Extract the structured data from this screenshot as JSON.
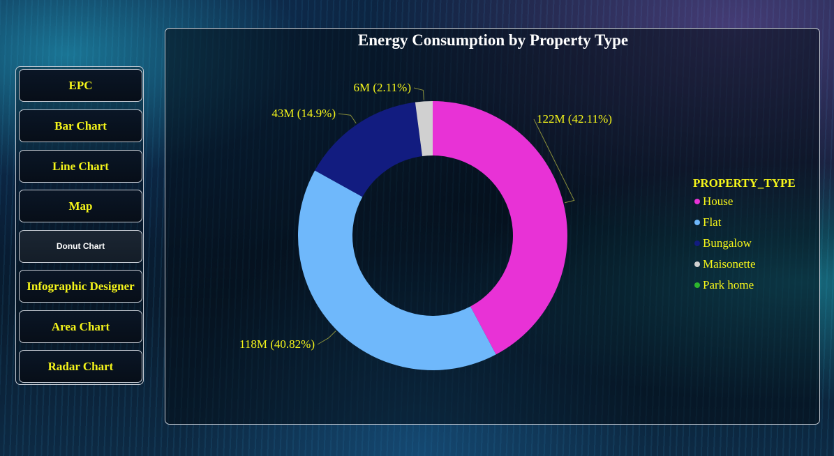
{
  "nav": {
    "items": [
      {
        "label": "EPC",
        "active": false
      },
      {
        "label": "Bar Chart",
        "active": false
      },
      {
        "label": "Line Chart",
        "active": false
      },
      {
        "label": "Map",
        "active": false
      },
      {
        "label": "Donut Chart",
        "active": true
      },
      {
        "label": "Infographic Designer",
        "active": false
      },
      {
        "label": "Area Chart",
        "active": false
      },
      {
        "label": "Radar Chart",
        "active": false
      }
    ]
  },
  "colors": {
    "accent_text": "#f5f51a",
    "house": "#e832d6",
    "flat": "#6fb8fb",
    "bungalow": "#121c80",
    "maisonette": "#d0d0d0",
    "park_home": "#2db52d"
  },
  "chart_data": {
    "type": "pie",
    "subtype": "donut",
    "title": "Energy Consumption by Property Type",
    "legend_title": "PROPERTY_TYPE",
    "legend_position": "right",
    "categories": [
      "House",
      "Flat",
      "Bungalow",
      "Maisonette",
      "Park home"
    ],
    "values": [
      122,
      118,
      43,
      6,
      0
    ],
    "percentages": [
      42.11,
      40.82,
      14.9,
      2.11,
      0
    ],
    "data_labels": [
      "122M (42.11%)",
      "118M (40.82%)",
      "43M (14.9%)",
      "6M (2.11%)",
      ""
    ],
    "colors": [
      "#e832d6",
      "#6fb8fb",
      "#121c80",
      "#d0d0d0",
      "#2db52d"
    ]
  }
}
